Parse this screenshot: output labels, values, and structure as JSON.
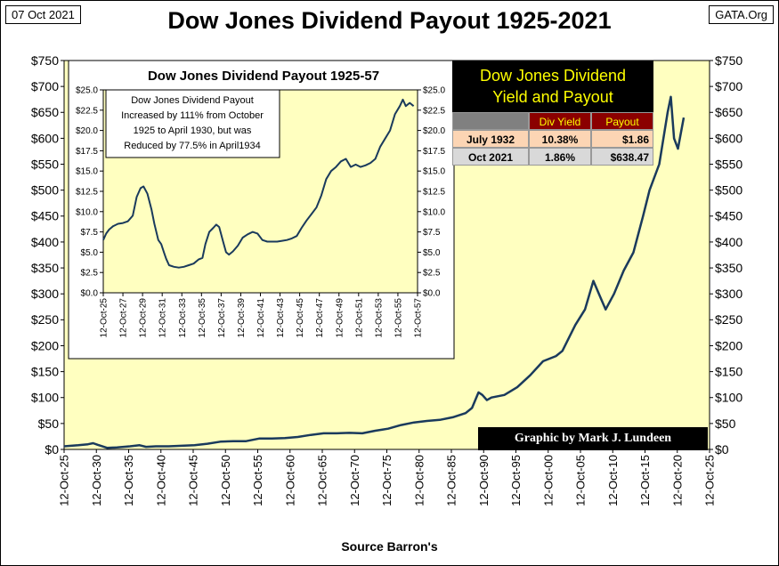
{
  "header": {
    "date": "07 Oct 2021",
    "title": "Dow Jones Dividend Payout 1925-2021",
    "site": "GATA.Org"
  },
  "footer": {
    "source": "Source Barron's",
    "credit": "Graphic by Mark J. Lundeen"
  },
  "colors": {
    "plot_bg": "#ffffc0",
    "line": "#1a3a5c",
    "table_header": "#8b0000",
    "row1_bg": "#fcd5b4",
    "row2_bg": "#d9d9d9",
    "gray_header": "#808080"
  },
  "yield_table": {
    "title_line1": "Dow Jones Dividend",
    "title_line2": "Yield and Payout",
    "headers": [
      "",
      "Div Yield",
      "Payout"
    ],
    "rows": [
      {
        "label": "July 1932",
        "yield": "10.38%",
        "payout": "$1.86"
      },
      {
        "label": "Oct 2021",
        "yield": "1.86%",
        "payout": "$638.47"
      }
    ]
  },
  "inset": {
    "title": "Dow Jones Dividend Payout 1925-57",
    "note_lines": [
      "Dow Jones Dividend Payout",
      "Increased by  111% from October",
      "1925 to April 1930, but was",
      "Reduced by 77.5% in April1934"
    ]
  },
  "chart_data": [
    {
      "type": "line",
      "title": "Dow Jones Dividend Payout 1925-2021",
      "xlabel": "Source Barron's",
      "ylabel": "",
      "x_tick_labels": [
        "12-Oct-25",
        "12-Oct-30",
        "12-Oct-35",
        "12-Oct-40",
        "12-Oct-45",
        "12-Oct-50",
        "12-Oct-55",
        "12-Oct-60",
        "12-Oct-65",
        "12-Oct-70",
        "12-Oct-75",
        "12-Oct-80",
        "12-Oct-85",
        "12-Oct-90",
        "12-Oct-95",
        "12-Oct-00",
        "12-Oct-05",
        "12-Oct-10",
        "12-Oct-15",
        "12-Oct-20",
        "12-Oct-25"
      ],
      "xlim": [
        1925.8,
        2025.8
      ],
      "y_tick_labels": [
        "$0",
        "$50",
        "$100",
        "$150",
        "$200",
        "$250",
        "$300",
        "$350",
        "$400",
        "$450",
        "$500",
        "$550",
        "$600",
        "$650",
        "$700",
        "$750"
      ],
      "ylim": [
        0,
        750
      ],
      "grid": false,
      "series": [
        {
          "x": [
            1925.8,
            1928,
            1929.5,
            1930.3,
            1931,
            1932.5,
            1934,
            1936,
            1937.5,
            1938.5,
            1940,
            1942,
            1944,
            1946,
            1948,
            1950,
            1952,
            1954,
            1956,
            1958,
            1960,
            1962,
            1964,
            1966,
            1968,
            1970,
            1972,
            1974,
            1975,
            1976,
            1978,
            1980,
            1982,
            1984,
            1986,
            1988,
            1989,
            1990,
            1990.6,
            1991.3,
            1992,
            1994,
            1996,
            1998,
            2000,
            2002,
            2003,
            2005,
            2006.5,
            2007.8,
            2009,
            2009.7,
            2011,
            2012.5,
            2014,
            2015.5,
            2016.5,
            2018,
            2019.3,
            2019.8,
            2020.3,
            2020.9,
            2021.8
          ],
          "values": [
            6,
            8,
            10,
            12,
            9,
            3,
            4,
            6,
            8,
            5,
            6,
            6,
            7,
            8,
            11,
            15,
            16,
            16,
            21,
            21,
            22,
            24,
            28,
            31,
            31,
            32,
            31,
            36,
            38,
            40,
            47,
            52,
            55,
            57,
            62,
            70,
            80,
            110,
            105,
            95,
            100,
            105,
            120,
            143,
            170,
            180,
            190,
            240,
            270,
            325,
            290,
            270,
            300,
            345,
            380,
            450,
            500,
            550,
            650,
            680,
            600,
            580,
            640
          ]
        }
      ]
    },
    {
      "type": "line",
      "title": "Dow Jones Dividend Payout 1925-57",
      "x_tick_labels": [
        "12-Oct-25",
        "12-Oct-27",
        "12-Oct-29",
        "12-Oct-31",
        "12-Oct-33",
        "12-Oct-35",
        "12-Oct-37",
        "12-Oct-39",
        "12-Oct-41",
        "12-Oct-43",
        "12-Oct-45",
        "12-Oct-47",
        "12-Oct-49",
        "12-Oct-51",
        "12-Oct-53",
        "12-Oct-55",
        "12-Oct-57"
      ],
      "xlim": [
        1925.8,
        1957.8
      ],
      "y_tick_labels": [
        "$0.0",
        "$2.5",
        "$5.0",
        "$7.5",
        "$10.0",
        "$12.5",
        "$15.0",
        "$17.5",
        "$20.0",
        "$22.5",
        "$25.0"
      ],
      "ylim": [
        0,
        25
      ],
      "grid": false,
      "series": [
        {
          "x": [
            1925.8,
            1926.1,
            1926.4,
            1926.8,
            1927.3,
            1927.8,
            1928.3,
            1928.8,
            1929.2,
            1929.6,
            1929.9,
            1930.3,
            1930.7,
            1931.0,
            1931.4,
            1931.7,
            1932.0,
            1932.2,
            1932.5,
            1933.0,
            1933.5,
            1934.0,
            1934.5,
            1935.0,
            1935.5,
            1935.9,
            1936.2,
            1936.6,
            1937.0,
            1937.3,
            1937.6,
            1938.0,
            1938.3,
            1938.6,
            1939.0,
            1939.5,
            1940.0,
            1940.5,
            1941.0,
            1941.5,
            1942.0,
            1942.5,
            1943.0,
            1943.5,
            1944.0,
            1944.5,
            1945.0,
            1945.5,
            1946.0,
            1946.5,
            1947.0,
            1947.5,
            1948.0,
            1948.5,
            1949.0,
            1949.5,
            1950.0,
            1950.5,
            1951.0,
            1951.5,
            1952.0,
            1952.5,
            1953.0,
            1953.5,
            1954.0,
            1954.5,
            1955.0,
            1955.5,
            1956.0,
            1956.3,
            1956.6,
            1957.0,
            1957.4
          ],
          "values": [
            6.5,
            7.3,
            7.8,
            8.2,
            8.5,
            8.6,
            8.8,
            9.5,
            11.8,
            12.9,
            13.1,
            12.2,
            10.3,
            8.5,
            6.5,
            6.0,
            4.9,
            4.2,
            3.4,
            3.2,
            3.1,
            3.2,
            3.4,
            3.6,
            4.1,
            4.3,
            6.0,
            7.5,
            8.0,
            8.4,
            8.1,
            6.3,
            5.0,
            4.7,
            5.1,
            5.8,
            6.8,
            7.2,
            7.5,
            7.3,
            6.5,
            6.3,
            6.3,
            6.3,
            6.4,
            6.5,
            6.7,
            7.0,
            8.0,
            8.9,
            9.7,
            10.5,
            12.0,
            14.0,
            15.0,
            15.5,
            16.2,
            16.5,
            15.5,
            15.8,
            15.5,
            15.7,
            16.0,
            16.5,
            18.0,
            19.0,
            20.0,
            22.0,
            23.0,
            23.8,
            23.0,
            23.4,
            23.0
          ]
        }
      ]
    }
  ]
}
